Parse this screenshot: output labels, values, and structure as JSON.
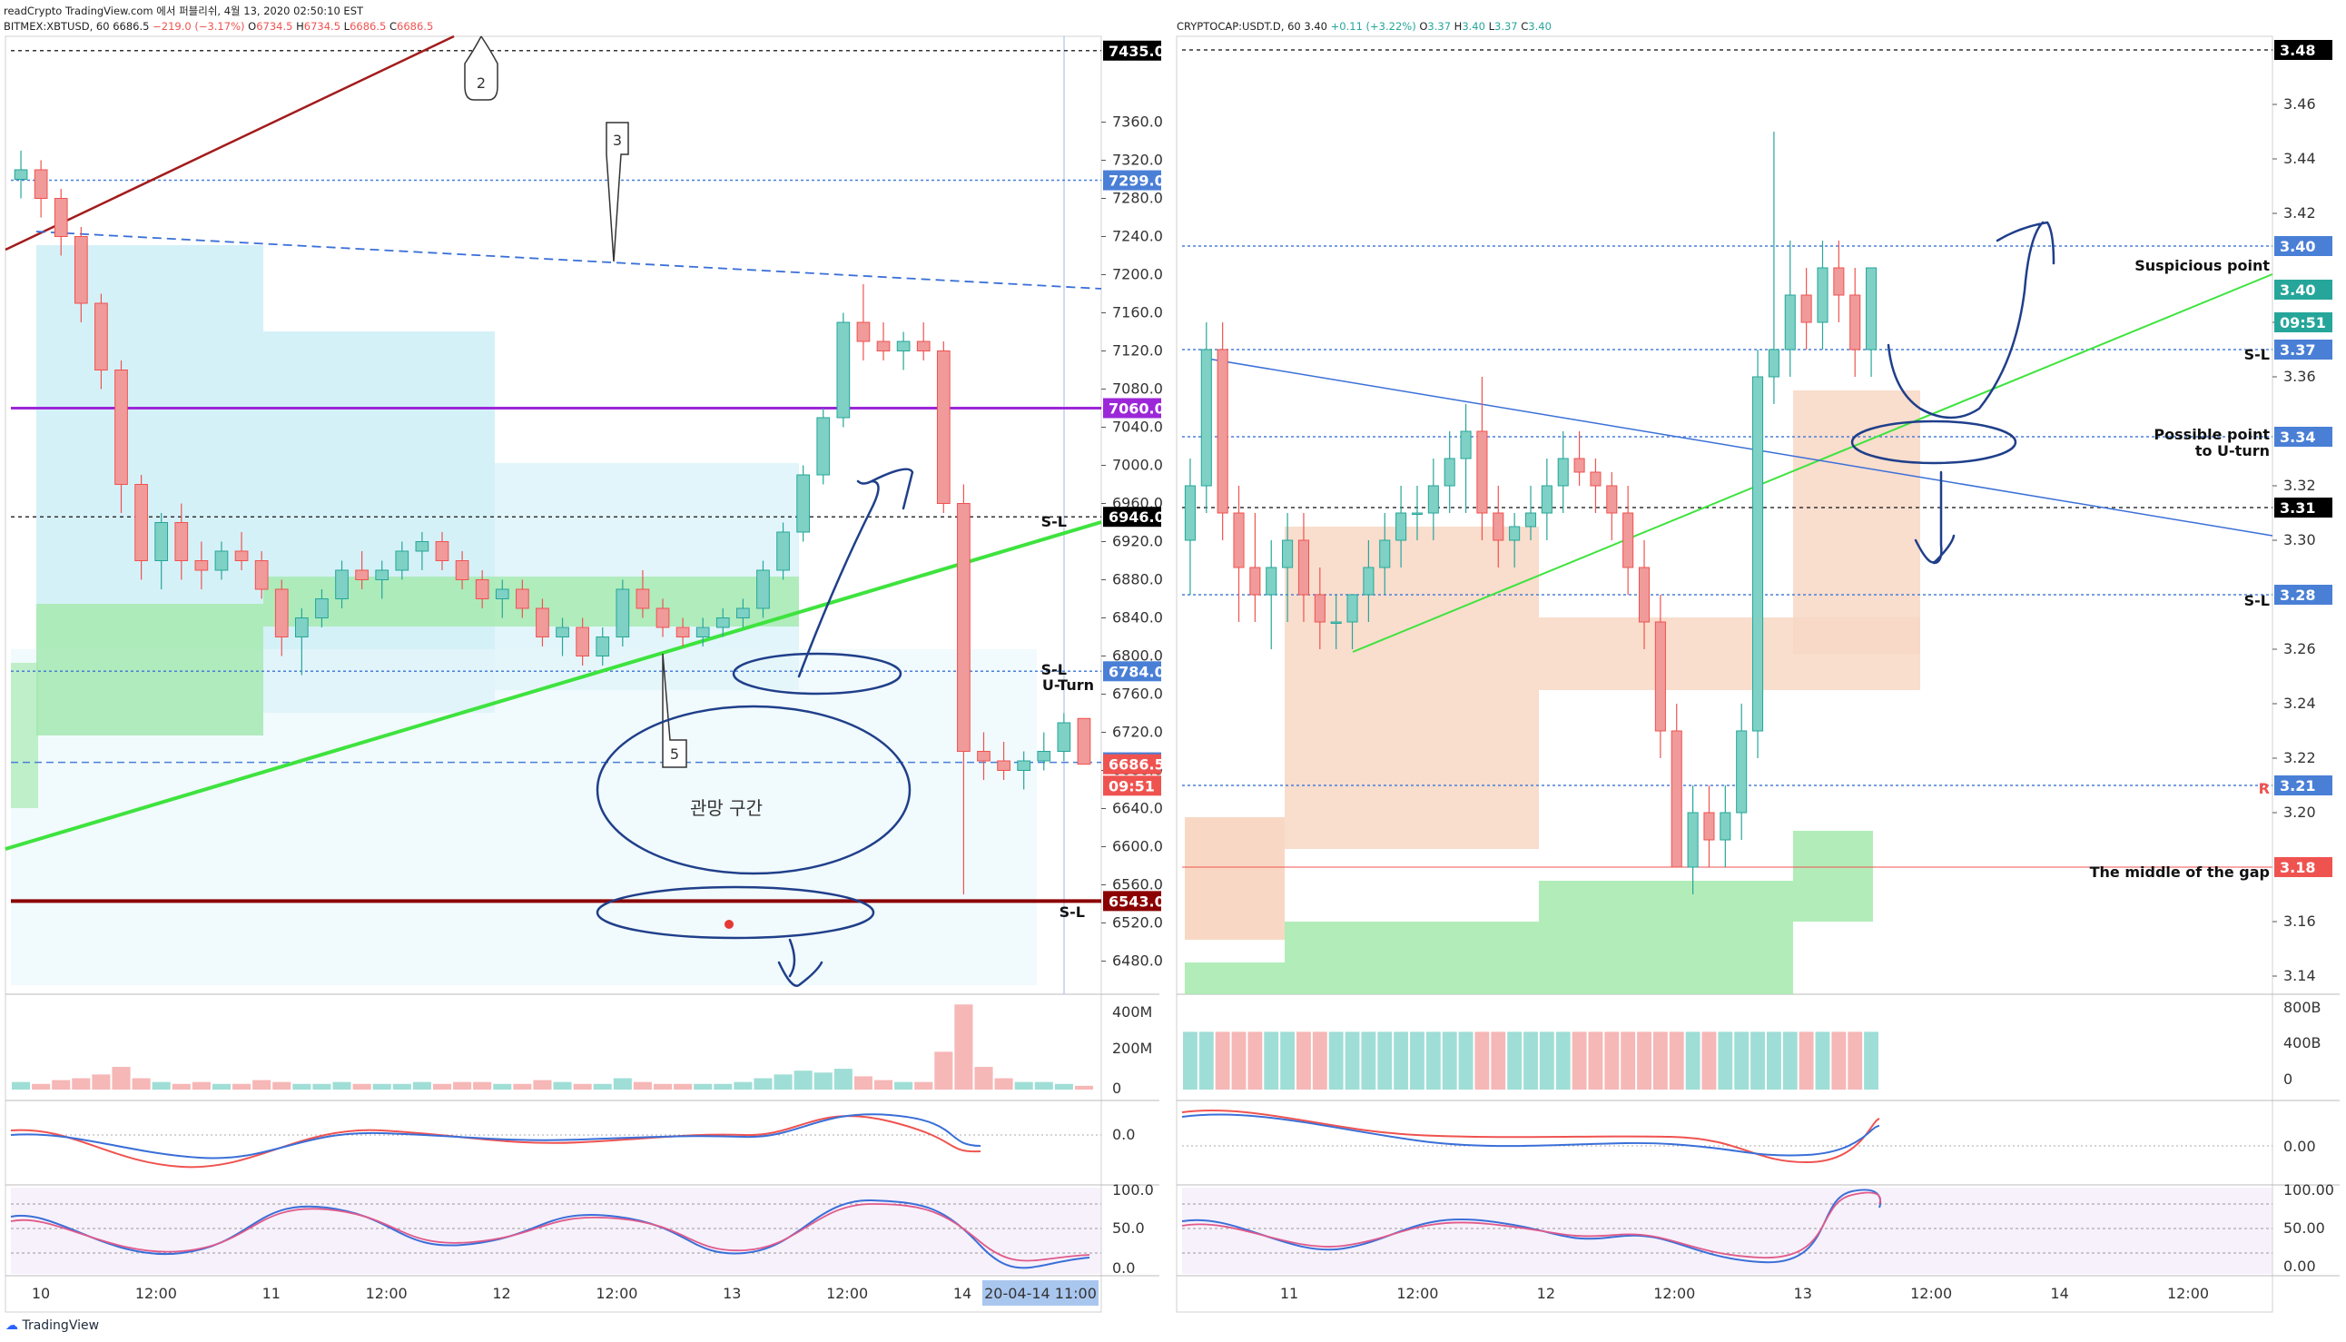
{
  "page": {
    "source_note": "readCrypto TradingView.com 에서 퍼블리쉬, 4월 13, 2020 02:50:10 EST",
    "branding": "TradingView"
  },
  "left": {
    "symbol": "BITMEX:XBTUSD, 60",
    "last": "6686.5",
    "change": "−219.0 (−3.17%)",
    "ohlc": {
      "o": "6734.5",
      "h": "6734.5",
      "l": "6686.5",
      "c": "6686.5"
    },
    "price_ticks": [
      "7360.0",
      "7320.0",
      "7280.0",
      "7240.0",
      "7200.0",
      "7160.0",
      "7120.0",
      "7080.0",
      "7040.0",
      "7000.0",
      "6960.0",
      "6920.0",
      "6880.0",
      "6840.0",
      "6800.0",
      "6760.0",
      "6720.0",
      "6680.0",
      "6640.0",
      "6600.0",
      "6560.0",
      "6520.0",
      "6480.0"
    ],
    "price_tags": [
      {
        "label": "7435.0",
        "price": 7435.0,
        "color": "#000000"
      },
      {
        "label": "7299.0",
        "price": 7299.0,
        "color": "#4a7fd6"
      },
      {
        "label": "7060.0",
        "price": 7060.0,
        "color": "#9c27d8"
      },
      {
        "label": "6946.0",
        "price": 6946.0,
        "color": "#000000"
      },
      {
        "label": "6784.0",
        "price": 6784.0,
        "color": "#4a7fd6"
      },
      {
        "label": "6688.5",
        "price": 6688.5,
        "color": "#4a7fd6"
      },
      {
        "label": "6686.5",
        "price": 6686.5,
        "color": "#ef5350"
      },
      {
        "label": "09:51",
        "price": 6664.0,
        "color": "#ef5350"
      },
      {
        "label": "6543.0",
        "price": 6543.0,
        "color": "#8b0000"
      }
    ],
    "time_ticks": [
      "10",
      "12:00",
      "11",
      "12:00",
      "12",
      "12:00",
      "13",
      "12:00",
      "14"
    ],
    "time_cursor": "20-04-14   11:00",
    "volume_ticks": [
      "400M",
      "200M",
      "0"
    ],
    "macd_ticks": [
      "0.0"
    ],
    "rsi_ticks": [
      "100.0",
      "50.0",
      "0.0"
    ],
    "labels": {
      "sl_6946": "S-L",
      "sl_6784": "S-L",
      "uturn": "U-Turn",
      "sl_6543": "S-L",
      "zone_text": "관망 구간",
      "callout_2": "2",
      "callout_3": "3",
      "callout_5": "5"
    }
  },
  "right": {
    "symbol": "CRYPTOCAP:USDT.D, 60",
    "last": "3.40",
    "change": "+0.11 (+3.22%)",
    "ohlc": {
      "o": "3.37",
      "h": "3.40",
      "l": "3.37",
      "c": "3.40"
    },
    "price_ticks": [
      "3.46",
      "3.44",
      "3.42",
      "3.38",
      "3.36",
      "3.32",
      "3.30",
      "3.26",
      "3.24",
      "3.22",
      "3.20",
      "3.16",
      "3.14"
    ],
    "price_tags": [
      {
        "label": "3.48",
        "price": 3.48,
        "color": "#000000"
      },
      {
        "label": "3.40",
        "price": 3.408,
        "color": "#4a7fd6"
      },
      {
        "label": "3.40",
        "price": 3.392,
        "color": "#26a69a"
      },
      {
        "label": "09:51",
        "price": 3.38,
        "color": "#26a69a"
      },
      {
        "label": "3.37",
        "price": 3.37,
        "color": "#4a7fd6"
      },
      {
        "label": "3.34",
        "price": 3.338,
        "color": "#4a7fd6"
      },
      {
        "label": "3.31",
        "price": 3.312,
        "color": "#000000"
      },
      {
        "label": "3.28",
        "price": 3.28,
        "color": "#4a7fd6"
      },
      {
        "label": "3.21",
        "price": 3.21,
        "color": "#4a7fd6"
      },
      {
        "label": "3.18",
        "price": 3.18,
        "color": "#ef5350"
      }
    ],
    "time_ticks": [
      "11",
      "12:00",
      "12",
      "12:00",
      "13",
      "12:00",
      "14",
      "12:00"
    ],
    "volume_ticks": [
      "800B",
      "400B",
      "0"
    ],
    "macd_ticks": [
      "0.00"
    ],
    "rsi_ticks": [
      "100.00",
      "50.00",
      "0.00"
    ],
    "labels": {
      "suspicious": "Suspicious point",
      "sl_337": "S-L",
      "possible_1": "Possible point",
      "possible_2": "to U-turn",
      "sl_328": "S-L",
      "r_321": "R",
      "gap_middle": "The middle of the gap"
    }
  },
  "chart_data": [
    {
      "type": "candlestick",
      "title": "BITMEX:XBTUSD, 60",
      "ylim": [
        6450,
        7450
      ],
      "series": [
        {
          "name": "XBTUSD",
          "ohlc": [
            [
              7300,
              7330,
              7280,
              7310
            ],
            [
              7310,
              7320,
              7260,
              7280
            ],
            [
              7280,
              7290,
              7220,
              7240
            ],
            [
              7240,
              7250,
              7150,
              7170
            ],
            [
              7170,
              7180,
              7080,
              7100
            ],
            [
              7100,
              7110,
              6950,
              6980
            ],
            [
              6980,
              6990,
              6880,
              6900
            ],
            [
              6900,
              6950,
              6870,
              6940
            ],
            [
              6940,
              6960,
              6880,
              6900
            ],
            [
              6900,
              6920,
              6870,
              6890
            ],
            [
              6890,
              6920,
              6880,
              6910
            ],
            [
              6910,
              6930,
              6890,
              6900
            ],
            [
              6900,
              6910,
              6860,
              6870
            ],
            [
              6870,
              6880,
              6800,
              6820
            ],
            [
              6820,
              6850,
              6780,
              6840
            ],
            [
              6840,
              6870,
              6830,
              6860
            ],
            [
              6860,
              6900,
              6850,
              6890
            ],
            [
              6890,
              6910,
              6870,
              6880
            ],
            [
              6880,
              6900,
              6860,
              6890
            ],
            [
              6890,
              6920,
              6880,
              6910
            ],
            [
              6910,
              6930,
              6890,
              6920
            ],
            [
              6920,
              6930,
              6890,
              6900
            ],
            [
              6900,
              6910,
              6870,
              6880
            ],
            [
              6880,
              6890,
              6850,
              6860
            ],
            [
              6860,
              6880,
              6840,
              6870
            ],
            [
              6870,
              6880,
              6840,
              6850
            ],
            [
              6850,
              6860,
              6810,
              6820
            ],
            [
              6820,
              6840,
              6800,
              6830
            ],
            [
              6830,
              6840,
              6790,
              6800
            ],
            [
              6800,
              6830,
              6790,
              6820
            ],
            [
              6820,
              6880,
              6810,
              6870
            ],
            [
              6870,
              6890,
              6840,
              6850
            ],
            [
              6850,
              6860,
              6820,
              6830
            ],
            [
              6830,
              6840,
              6810,
              6820
            ],
            [
              6820,
              6840,
              6810,
              6830
            ],
            [
              6830,
              6850,
              6820,
              6840
            ],
            [
              6840,
              6860,
              6830,
              6850
            ],
            [
              6850,
              6900,
              6840,
              6890
            ],
            [
              6890,
              6940,
              6880,
              6930
            ],
            [
              6930,
              7000,
              6920,
              6990
            ],
            [
              6990,
              7060,
              6980,
              7050
            ],
            [
              7050,
              7160,
              7040,
              7150
            ],
            [
              7150,
              7190,
              7110,
              7130
            ],
            [
              7130,
              7150,
              7110,
              7120
            ],
            [
              7120,
              7140,
              7100,
              7130
            ],
            [
              7130,
              7150,
              7110,
              7120
            ],
            [
              7120,
              7130,
              6950,
              6960
            ],
            [
              6960,
              6980,
              6550,
              6700
            ],
            [
              6700,
              6720,
              6670,
              6690
            ],
            [
              6690,
              6710,
              6670,
              6680
            ],
            [
              6680,
              6700,
              6660,
              6690
            ],
            [
              6690,
              6720,
              6680,
              6700
            ],
            [
              6700,
              6740,
              6690,
              6730
            ],
            [
              6734.5,
              6734.5,
              6686.5,
              6686.5
            ]
          ]
        }
      ],
      "volume": [
        40,
        30,
        50,
        60,
        80,
        120,
        60,
        40,
        30,
        40,
        30,
        30,
        50,
        40,
        30,
        30,
        40,
        30,
        30,
        30,
        40,
        30,
        40,
        40,
        30,
        30,
        50,
        40,
        30,
        30,
        60,
        40,
        30,
        30,
        30,
        30,
        40,
        60,
        80,
        100,
        90,
        110,
        70,
        50,
        40,
        40,
        200,
        450,
        120,
        60,
        40,
        40,
        30,
        20
      ]
    },
    {
      "type": "candlestick",
      "title": "CRYPTOCAP:USDT.D, 60",
      "ylim": [
        3.135,
        3.485
      ],
      "series": [
        {
          "name": "USDT.D",
          "ohlc": [
            [
              3.3,
              3.33,
              3.28,
              3.32
            ],
            [
              3.32,
              3.38,
              3.31,
              3.37
            ],
            [
              3.37,
              3.38,
              3.3,
              3.31
            ],
            [
              3.31,
              3.32,
              3.27,
              3.29
            ],
            [
              3.29,
              3.31,
              3.27,
              3.28
            ],
            [
              3.28,
              3.3,
              3.26,
              3.29
            ],
            [
              3.29,
              3.31,
              3.27,
              3.3
            ],
            [
              3.3,
              3.31,
              3.27,
              3.28
            ],
            [
              3.28,
              3.29,
              3.26,
              3.27
            ],
            [
              3.27,
              3.28,
              3.26,
              3.27
            ],
            [
              3.27,
              3.28,
              3.26,
              3.28
            ],
            [
              3.28,
              3.3,
              3.27,
              3.29
            ],
            [
              3.29,
              3.31,
              3.28,
              3.3
            ],
            [
              3.3,
              3.32,
              3.29,
              3.31
            ],
            [
              3.31,
              3.32,
              3.3,
              3.31
            ],
            [
              3.31,
              3.33,
              3.3,
              3.32
            ],
            [
              3.32,
              3.34,
              3.31,
              3.33
            ],
            [
              3.33,
              3.35,
              3.31,
              3.34
            ],
            [
              3.34,
              3.36,
              3.3,
              3.31
            ],
            [
              3.31,
              3.32,
              3.29,
              3.3
            ],
            [
              3.3,
              3.31,
              3.29,
              3.305
            ],
            [
              3.305,
              3.32,
              3.3,
              3.31
            ],
            [
              3.31,
              3.33,
              3.3,
              3.32
            ],
            [
              3.32,
              3.34,
              3.31,
              3.33
            ],
            [
              3.33,
              3.34,
              3.32,
              3.325
            ],
            [
              3.325,
              3.33,
              3.31,
              3.32
            ],
            [
              3.32,
              3.325,
              3.3,
              3.31
            ],
            [
              3.31,
              3.32,
              3.28,
              3.29
            ],
            [
              3.29,
              3.3,
              3.26,
              3.27
            ],
            [
              3.27,
              3.28,
              3.22,
              3.23
            ],
            [
              3.23,
              3.24,
              3.18,
              3.18
            ],
            [
              3.18,
              3.21,
              3.17,
              3.2
            ],
            [
              3.2,
              3.21,
              3.18,
              3.19
            ],
            [
              3.19,
              3.21,
              3.18,
              3.2
            ],
            [
              3.2,
              3.24,
              3.19,
              3.23
            ],
            [
              3.23,
              3.37,
              3.22,
              3.36
            ],
            [
              3.36,
              3.45,
              3.35,
              3.37
            ],
            [
              3.37,
              3.41,
              3.36,
              3.39
            ],
            [
              3.39,
              3.4,
              3.37,
              3.38
            ],
            [
              3.38,
              3.41,
              3.37,
              3.4
            ],
            [
              3.4,
              3.41,
              3.38,
              3.39
            ],
            [
              3.39,
              3.4,
              3.36,
              3.37
            ],
            [
              3.37,
              3.4,
              3.36,
              3.4
            ]
          ]
        }
      ],
      "volume": [
        70,
        70,
        70,
        70,
        70,
        70,
        70,
        70,
        70,
        70,
        70,
        70,
        70,
        70,
        70,
        70,
        70,
        70,
        70,
        70,
        70,
        70,
        70,
        70,
        70,
        70,
        70,
        70,
        70,
        70,
        70,
        70,
        70,
        70,
        70,
        70,
        70,
        70,
        70,
        70,
        70,
        70,
        70
      ]
    }
  ]
}
